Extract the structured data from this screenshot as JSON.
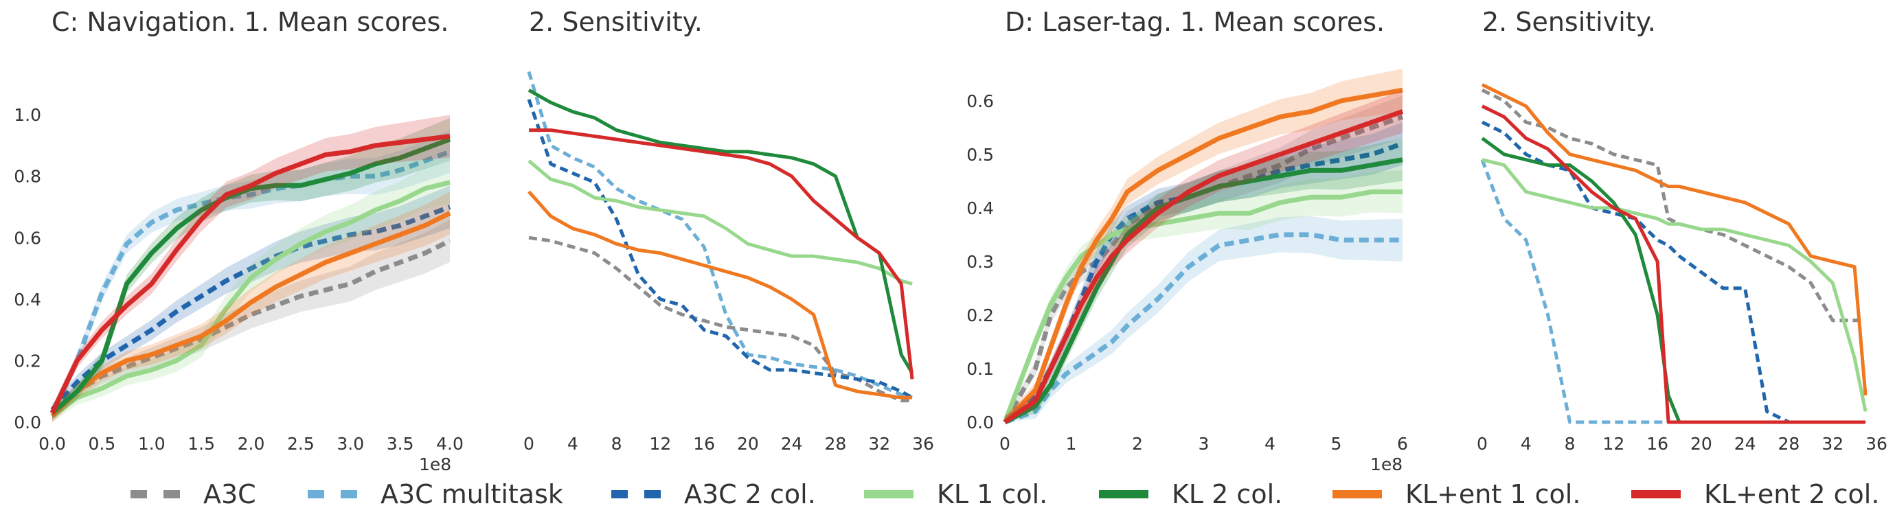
{
  "colors": {
    "A3C": "#8c8c8c",
    "A3C multitask": "#6baed6",
    "A3C 2 col.": "#2166ac",
    "KL 1 col.": "#98d88c",
    "KL 2 col.": "#1f8a3b",
    "KL+ent 1 col.": "#f07820",
    "KL+ent 2 col.": "#d62a2a"
  },
  "legend": [
    {
      "name": "A3C",
      "style": "dashed"
    },
    {
      "name": "A3C multitask",
      "style": "dashed"
    },
    {
      "name": "A3C 2 col.",
      "style": "dashed"
    },
    {
      "name": "KL 1 col.",
      "style": "solid"
    },
    {
      "name": "KL 2 col.",
      "style": "solid"
    },
    {
      "name": "KL+ent 1 col.",
      "style": "solid"
    },
    {
      "name": "KL+ent 2 col.",
      "style": "solid"
    }
  ],
  "chart_data": [
    {
      "type": "line",
      "title": "C: Navigation.   1. Mean scores.",
      "x_multiplier_label": "1e8",
      "xlim": [
        0,
        4.0
      ],
      "ylim": [
        0,
        1.15
      ],
      "xticks": [
        "0.0",
        "0.5",
        "1.0",
        "1.5",
        "2.0",
        "2.5",
        "3.0",
        "3.5",
        "4.0"
      ],
      "yticks": [
        "0.0",
        "0.2",
        "0.4",
        "0.6",
        "0.8",
        "1.0"
      ],
      "x": [
        0,
        0.25,
        0.5,
        0.75,
        1.0,
        1.25,
        1.5,
        1.75,
        2.0,
        2.25,
        2.5,
        2.75,
        3.0,
        3.25,
        3.5,
        3.75,
        4.0
      ],
      "series": [
        {
          "name": "A3C",
          "values": [
            0.02,
            0.1,
            0.15,
            0.18,
            0.21,
            0.24,
            0.27,
            0.31,
            0.35,
            0.38,
            0.41,
            0.43,
            0.45,
            0.49,
            0.52,
            0.55,
            0.59
          ]
        },
        {
          "name": "A3C multitask",
          "values": [
            0.03,
            0.2,
            0.42,
            0.58,
            0.65,
            0.69,
            0.71,
            0.73,
            0.74,
            0.76,
            0.77,
            0.79,
            0.8,
            0.8,
            0.82,
            0.85,
            0.88
          ]
        },
        {
          "name": "A3C 2 col.",
          "values": [
            0.04,
            0.13,
            0.2,
            0.25,
            0.3,
            0.36,
            0.41,
            0.46,
            0.5,
            0.54,
            0.57,
            0.59,
            0.61,
            0.62,
            0.64,
            0.67,
            0.7
          ]
        },
        {
          "name": "KL 1 col.",
          "values": [
            0.02,
            0.08,
            0.11,
            0.15,
            0.17,
            0.2,
            0.25,
            0.37,
            0.47,
            0.53,
            0.58,
            0.62,
            0.65,
            0.69,
            0.72,
            0.76,
            0.78
          ]
        },
        {
          "name": "KL 2 col.",
          "values": [
            0.03,
            0.1,
            0.2,
            0.45,
            0.55,
            0.63,
            0.69,
            0.73,
            0.76,
            0.77,
            0.77,
            0.79,
            0.81,
            0.84,
            0.86,
            0.89,
            0.92
          ]
        },
        {
          "name": "KL+ent 1 col.",
          "values": [
            0.02,
            0.1,
            0.16,
            0.2,
            0.22,
            0.25,
            0.28,
            0.33,
            0.39,
            0.44,
            0.48,
            0.52,
            0.55,
            0.58,
            0.61,
            0.64,
            0.68
          ]
        },
        {
          "name": "KL+ent 2 col.",
          "values": [
            0.03,
            0.2,
            0.3,
            0.38,
            0.45,
            0.56,
            0.66,
            0.74,
            0.77,
            0.81,
            0.84,
            0.87,
            0.88,
            0.9,
            0.91,
            0.92,
            0.93
          ]
        }
      ]
    },
    {
      "type": "line",
      "title": "2. Sensitivity.",
      "xlim": [
        0,
        36
      ],
      "ylim": [
        0,
        1.15
      ],
      "xticks": [
        "0",
        "4",
        "8",
        "12",
        "16",
        "20",
        "24",
        "28",
        "32",
        "36"
      ],
      "x": [
        0,
        2,
        4,
        6,
        8,
        10,
        12,
        14,
        16,
        18,
        20,
        22,
        24,
        26,
        28,
        30,
        32,
        34,
        35
      ],
      "series": [
        {
          "name": "A3C",
          "values": [
            0.6,
            0.59,
            0.57,
            0.55,
            0.5,
            0.44,
            0.38,
            0.35,
            0.33,
            0.31,
            0.3,
            0.29,
            0.28,
            0.25,
            0.16,
            0.14,
            0.1,
            0.07,
            0.07
          ]
        },
        {
          "name": "A3C multitask",
          "values": [
            1.14,
            0.9,
            0.86,
            0.83,
            0.76,
            0.72,
            0.69,
            0.66,
            0.57,
            0.35,
            0.22,
            0.21,
            0.19,
            0.18,
            0.17,
            0.15,
            0.12,
            0.09,
            0.08
          ]
        },
        {
          "name": "A3C 2 col.",
          "values": [
            1.05,
            0.84,
            0.81,
            0.78,
            0.66,
            0.48,
            0.4,
            0.38,
            0.3,
            0.28,
            0.21,
            0.17,
            0.17,
            0.16,
            0.15,
            0.14,
            0.13,
            0.1,
            0.08
          ]
        },
        {
          "name": "KL 1 col.",
          "values": [
            0.85,
            0.79,
            0.77,
            0.73,
            0.72,
            0.7,
            0.69,
            0.68,
            0.67,
            0.63,
            0.58,
            0.56,
            0.54,
            0.54,
            0.53,
            0.52,
            0.5,
            0.46,
            0.45
          ]
        },
        {
          "name": "KL 2 col.",
          "values": [
            1.08,
            1.04,
            1.01,
            0.99,
            0.95,
            0.93,
            0.91,
            0.9,
            0.89,
            0.88,
            0.88,
            0.87,
            0.86,
            0.84,
            0.8,
            0.6,
            0.55,
            0.22,
            0.16
          ]
        },
        {
          "name": "KL+ent 1 col.",
          "values": [
            0.75,
            0.67,
            0.63,
            0.61,
            0.58,
            0.56,
            0.55,
            0.53,
            0.51,
            0.49,
            0.47,
            0.44,
            0.4,
            0.35,
            0.12,
            0.1,
            0.09,
            0.08,
            0.08
          ]
        },
        {
          "name": "KL+ent 2 col.",
          "values": [
            0.95,
            0.95,
            0.94,
            0.93,
            0.92,
            0.91,
            0.9,
            0.89,
            0.88,
            0.87,
            0.86,
            0.84,
            0.8,
            0.72,
            0.66,
            0.6,
            0.55,
            0.45,
            0.14
          ]
        }
      ]
    },
    {
      "type": "line",
      "title": "D: Laser-tag.   1. Mean scores.",
      "x_multiplier_label": "1e8",
      "xlim": [
        0,
        6.5
      ],
      "ylim": [
        0,
        0.66
      ],
      "xticks": [
        "0",
        "1",
        "2",
        "3",
        "4",
        "5",
        "6"
      ],
      "yticks": [
        "0.0",
        "0.1",
        "0.2",
        "0.3",
        "0.4",
        "0.5",
        "0.6"
      ],
      "x": [
        0,
        0.5,
        0.75,
        1.0,
        1.25,
        1.5,
        1.75,
        2.0,
        2.5,
        3.0,
        3.5,
        4.0,
        4.5,
        5.0,
        5.5,
        6.0,
        6.5
      ],
      "series": [
        {
          "name": "A3C",
          "values": [
            0,
            0.1,
            0.2,
            0.25,
            0.28,
            0.3,
            0.33,
            0.37,
            0.4,
            0.42,
            0.44,
            0.46,
            0.48,
            0.51,
            0.53,
            0.55,
            0.57
          ]
        },
        {
          "name": "A3C multitask",
          "values": [
            0,
            0.02,
            0.06,
            0.09,
            0.11,
            0.13,
            0.15,
            0.18,
            0.23,
            0.29,
            0.33,
            0.34,
            0.35,
            0.35,
            0.34,
            0.34,
            0.34
          ]
        },
        {
          "name": "A3C 2 col.",
          "values": [
            0,
            0.05,
            0.1,
            0.16,
            0.23,
            0.3,
            0.35,
            0.38,
            0.41,
            0.42,
            0.44,
            0.45,
            0.47,
            0.48,
            0.49,
            0.5,
            0.52
          ]
        },
        {
          "name": "KL 1 col.",
          "values": [
            0,
            0.15,
            0.22,
            0.27,
            0.31,
            0.33,
            0.35,
            0.36,
            0.37,
            0.38,
            0.39,
            0.39,
            0.41,
            0.42,
            0.42,
            0.43,
            0.43
          ]
        },
        {
          "name": "KL 2 col.",
          "values": [
            0,
            0.03,
            0.07,
            0.13,
            0.19,
            0.25,
            0.3,
            0.35,
            0.4,
            0.42,
            0.44,
            0.45,
            0.46,
            0.47,
            0.47,
            0.48,
            0.49
          ]
        },
        {
          "name": "KL+ent 1 col.",
          "values": [
            0,
            0.06,
            0.14,
            0.22,
            0.29,
            0.34,
            0.38,
            0.43,
            0.47,
            0.5,
            0.53,
            0.55,
            0.57,
            0.58,
            0.6,
            0.61,
            0.62
          ]
        },
        {
          "name": "KL+ent 2 col.",
          "values": [
            0,
            0.04,
            0.1,
            0.16,
            0.22,
            0.27,
            0.31,
            0.34,
            0.39,
            0.43,
            0.46,
            0.48,
            0.5,
            0.52,
            0.54,
            0.56,
            0.58
          ]
        }
      ]
    },
    {
      "type": "line",
      "title": "2. Sensitivity.",
      "xlim": [
        0,
        36
      ],
      "ylim": [
        0,
        0.66
      ],
      "xticks": [
        "0",
        "4",
        "8",
        "12",
        "16",
        "20",
        "24",
        "28",
        "32",
        "36"
      ],
      "x": [
        0,
        2,
        4,
        6,
        8,
        10,
        12,
        14,
        16,
        17,
        18,
        20,
        22,
        24,
        26,
        28,
        30,
        32,
        34,
        35
      ],
      "series": [
        {
          "name": "A3C",
          "values": [
            0.62,
            0.6,
            0.56,
            0.55,
            0.53,
            0.52,
            0.5,
            0.49,
            0.48,
            0.38,
            0.37,
            0.36,
            0.35,
            0.33,
            0.31,
            0.29,
            0.26,
            0.19,
            0.19,
            0.19
          ]
        },
        {
          "name": "A3C multitask",
          "values": [
            0.49,
            0.38,
            0.34,
            0.2,
            0.0,
            0.0,
            0.0,
            0.0,
            0.0,
            0.0,
            0.0,
            0.0,
            0.0,
            0.0,
            0.0,
            0.0,
            0.0,
            0.0,
            0.0,
            0.0
          ]
        },
        {
          "name": "A3C 2 col.",
          "values": [
            0.56,
            0.54,
            0.5,
            0.48,
            0.47,
            0.4,
            0.39,
            0.38,
            0.34,
            0.33,
            0.31,
            0.28,
            0.25,
            0.25,
            0.02,
            0.0,
            0.0,
            0.0,
            0.0,
            0.0
          ]
        },
        {
          "name": "KL 1 col.",
          "values": [
            0.49,
            0.48,
            0.43,
            0.42,
            0.41,
            0.4,
            0.4,
            0.39,
            0.38,
            0.37,
            0.37,
            0.36,
            0.36,
            0.35,
            0.34,
            0.33,
            0.3,
            0.26,
            0.12,
            0.02
          ]
        },
        {
          "name": "KL 2 col.",
          "values": [
            0.53,
            0.5,
            0.49,
            0.48,
            0.48,
            0.45,
            0.41,
            0.35,
            0.2,
            0.05,
            0.0,
            0.0,
            0.0,
            0.0,
            0.0,
            0.0,
            0.0,
            0.0,
            0.0,
            0.0
          ]
        },
        {
          "name": "KL+ent 1 col.",
          "values": [
            0.63,
            0.61,
            0.59,
            0.54,
            0.5,
            0.49,
            0.48,
            0.47,
            0.45,
            0.44,
            0.44,
            0.43,
            0.42,
            0.41,
            0.39,
            0.37,
            0.31,
            0.3,
            0.29,
            0.05
          ]
        },
        {
          "name": "KL+ent 2 col.",
          "values": [
            0.59,
            0.57,
            0.53,
            0.51,
            0.47,
            0.43,
            0.4,
            0.38,
            0.3,
            0.0,
            0.0,
            0.0,
            0.0,
            0.0,
            0.0,
            0.0,
            0.0,
            0.0,
            0.0,
            0.0
          ]
        }
      ]
    }
  ]
}
